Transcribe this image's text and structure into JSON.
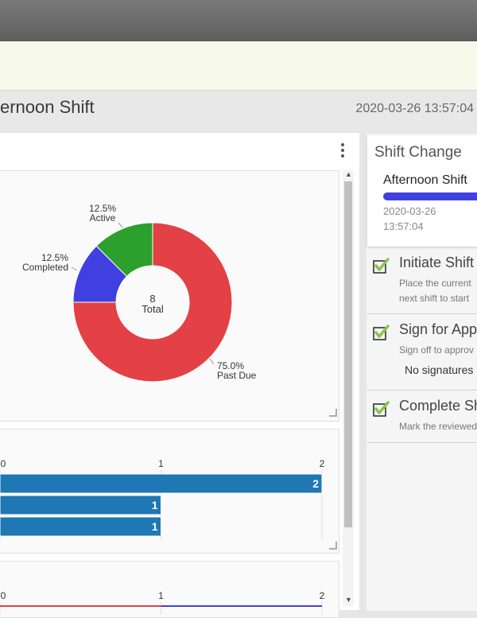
{
  "header": {
    "title": "ernoon Shift",
    "timestamp": "2020-03-26 13:57:04"
  },
  "chart_data": [
    {
      "type": "pie",
      "center_label": [
        "8",
        "Total"
      ],
      "slices": [
        {
          "label": "Past Due",
          "percent_label": "75.0%",
          "value": 6,
          "color": "#e34145"
        },
        {
          "label": "Completed",
          "percent_label": "12.5%",
          "value": 1,
          "color": "#4040e0"
        },
        {
          "label": "Active",
          "percent_label": "12.5%",
          "value": 1,
          "color": "#2ca02c"
        }
      ]
    },
    {
      "type": "bar",
      "orientation": "horizontal",
      "ticks": [
        "0",
        "1",
        "2"
      ],
      "xlim": [
        0,
        2
      ],
      "values": [
        2,
        1,
        1
      ],
      "value_labels": [
        "2",
        "1",
        "1"
      ],
      "color": "#1f77b4"
    },
    {
      "type": "bar",
      "orientation": "horizontal",
      "ticks": [
        "0",
        "1",
        "2"
      ],
      "xlim": [
        0,
        2
      ]
    }
  ],
  "shift_change": {
    "title": "Shift Change",
    "shift_name": "Afternoon Shift",
    "date": "2020-03-26",
    "time": "13:57:04",
    "progress_color": "#4040e0"
  },
  "steps": [
    {
      "title": "Initiate Shift",
      "desc_line1": "Place the current",
      "desc_line2": "next shift to start"
    },
    {
      "title": "Sign for App",
      "desc_line1": "Sign off to approv",
      "extra": "No signatures"
    },
    {
      "title": "Complete Sh",
      "desc_line1": "Mark the reviewed"
    }
  ]
}
